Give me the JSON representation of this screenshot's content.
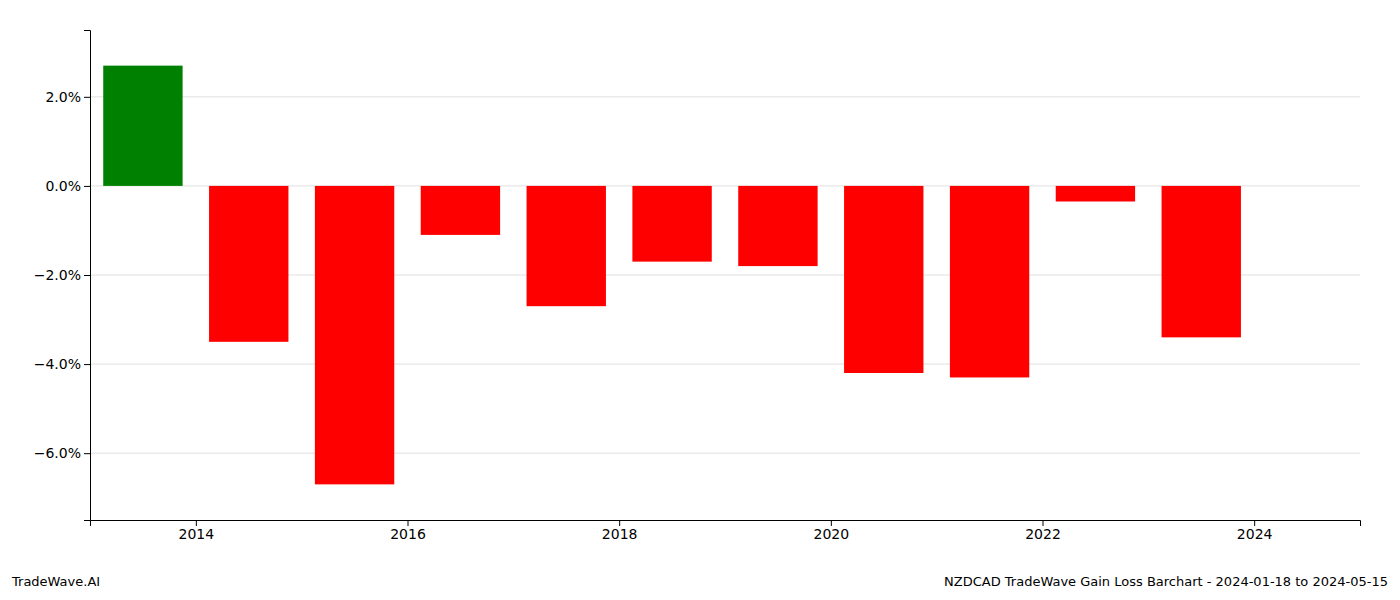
{
  "chart_data": {
    "type": "bar",
    "x": [
      2013.5,
      2014.5,
      2015.5,
      2016.5,
      2017.5,
      2018.5,
      2019.5,
      2020.5,
      2021.5,
      2022.5,
      2023.5
    ],
    "values": [
      2.7,
      -3.5,
      -6.7,
      -1.1,
      -2.7,
      -1.7,
      -1.8,
      -4.2,
      -4.3,
      -0.35,
      -3.4
    ],
    "colors": [
      "#008000",
      "#ff0000",
      "#ff0000",
      "#ff0000",
      "#ff0000",
      "#ff0000",
      "#ff0000",
      "#ff0000",
      "#ff0000",
      "#ff0000",
      "#ff0000"
    ],
    "xlim": [
      2013.0,
      2025.0
    ],
    "xticks": [
      2014,
      2016,
      2018,
      2020,
      2022,
      2024
    ],
    "ylim": [
      -7.5,
      3.5
    ],
    "yticks": [
      {
        "value": 2.0,
        "label": "2.0%"
      },
      {
        "value": 0.0,
        "label": "0.0%"
      },
      {
        "value": -2.0,
        "label": "−2.0%"
      },
      {
        "value": -4.0,
        "label": "−4.0%"
      },
      {
        "value": -6.0,
        "label": "−6.0%"
      }
    ],
    "grid": true,
    "annotations": [
      "TradeWave.AI",
      "NZDCAD TradeWave Gain Loss Barchart - 2024-01-18 to 2024-05-15"
    ]
  }
}
